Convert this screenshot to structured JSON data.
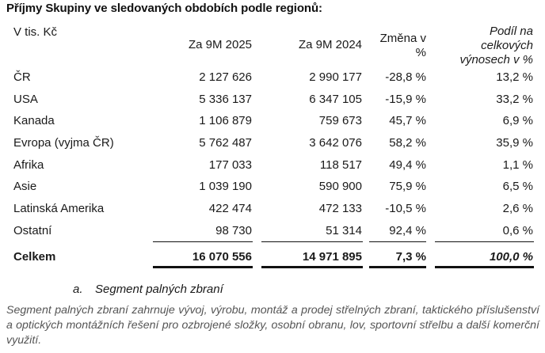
{
  "title": "Příjmy Skupiny ve sledovaných obdobích podle regionů:",
  "table": {
    "unit_label": "V tis. Kč",
    "columns": [
      "Za 9M 2025",
      "Za 9M 2024",
      "Změna v %",
      "Podíl na celkových výnosech v %"
    ],
    "header": {
      "col1": "Za 9M 2025",
      "col2": "Za 9M 2024",
      "col3_line1": "Změna v",
      "col3_line2": "%",
      "col4_line1": "Podíl na",
      "col4_line2": "celkových",
      "col4_line3": "výnosech v %"
    },
    "rows": [
      {
        "region": "ČR",
        "y2025": "2 127 626",
        "y2024": "2 990 177",
        "change": "-28,8 %",
        "share": "13,2 %"
      },
      {
        "region": "USA",
        "y2025": "5 336 137",
        "y2024": "6 347 105",
        "change": "-15,9 %",
        "share": "33,2 %"
      },
      {
        "region": "Kanada",
        "y2025": "1 106 879",
        "y2024": "759 673",
        "change": "45,7 %",
        "share": "6,9 %"
      },
      {
        "region": "Evropa (vyjma ČR)",
        "y2025": "5 762 487",
        "y2024": "3 642 076",
        "change": "58,2 %",
        "share": "35,9 %"
      },
      {
        "region": "Afrika",
        "y2025": "177 033",
        "y2024": "118 517",
        "change": "49,4 %",
        "share": "1,1 %"
      },
      {
        "region": "Asie",
        "y2025": "1 039 190",
        "y2024": "590 900",
        "change": "75,9 %",
        "share": "6,5 %"
      },
      {
        "region": "Latinská Amerika",
        "y2025": "422 474",
        "y2024": "472 133",
        "change": "-10,5 %",
        "share": "2,6 %"
      },
      {
        "region": "Ostatní",
        "y2025": "98 730",
        "y2024": "51 314",
        "change": "92,4 %",
        "share": "0,6 %"
      }
    ],
    "total": {
      "region": "Celkem",
      "y2025": "16 070 556",
      "y2024": "14 971 895",
      "change": "7,3 %",
      "share": "100,0 %"
    }
  },
  "section": {
    "marker": "a.",
    "heading": "Segment palných zbraní",
    "paragraph": "Segment palných zbraní zahrnuje vývoj, výrobu, montáž a prodej střelných zbraní, taktického příslušenství a optických montážních řešení pro ozbrojené složky, osobní obranu, lov, sportovní střelbu a další komerční využití."
  }
}
